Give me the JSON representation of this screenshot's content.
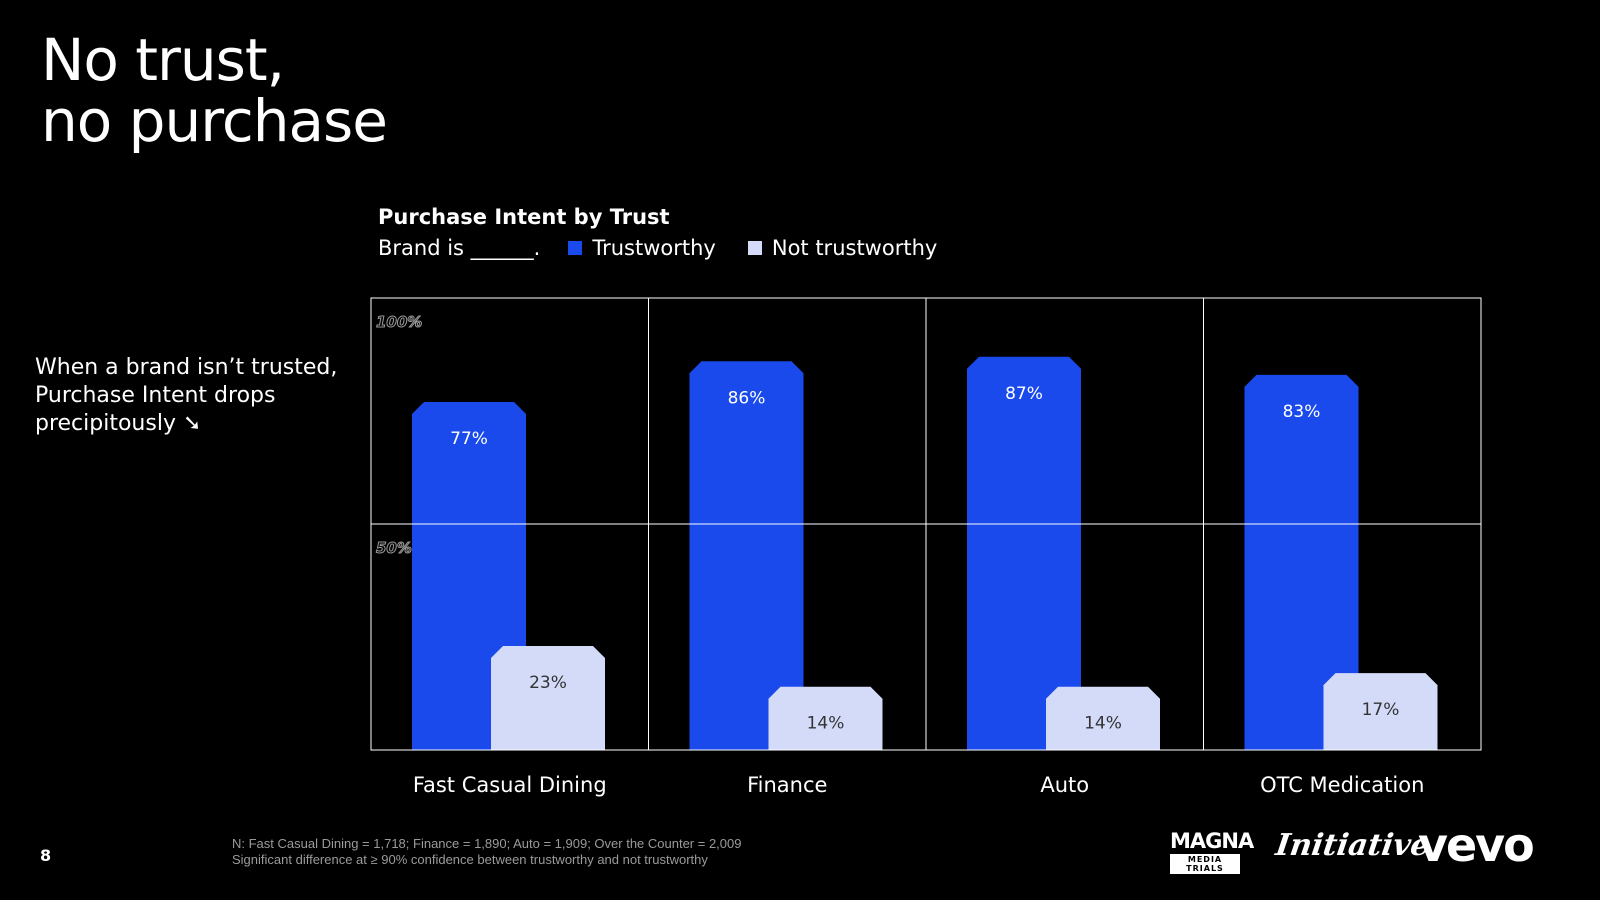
{
  "title": {
    "line1": "No trust,",
    "line2": "no purchase"
  },
  "side_note": {
    "line1": "When a brand isn’t trusted,",
    "line2": "Purchase Intent drops",
    "line3": "precipitously ➘"
  },
  "legend": {
    "prefix": "Brand is ______.",
    "trustworthy": "Trustworthy",
    "not_trustworthy": "Not trustworthy"
  },
  "colors": {
    "trustworthy": "#1a4aeb",
    "not_trustworthy": "#d3dbf9",
    "background": "#000000"
  },
  "chart_data": {
    "type": "bar",
    "title": "Purchase Intent by Trust",
    "categories": [
      "Fast Casual Dining",
      "Finance",
      "Auto",
      "OTC Medication"
    ],
    "series": [
      {
        "name": "Trustworthy",
        "values": [
          77,
          86,
          87,
          83
        ],
        "labels": [
          "77%",
          "86%",
          "87%",
          "83%"
        ]
      },
      {
        "name": "Not trustworthy",
        "values": [
          23,
          14,
          14,
          17
        ],
        "labels": [
          "23%",
          "14%",
          "14%",
          "17%"
        ]
      }
    ],
    "ylim": [
      0,
      100
    ],
    "yticks": [
      {
        "value": 100,
        "label": "100%"
      },
      {
        "value": 50,
        "label": "50%"
      }
    ],
    "grid": true,
    "legend_position": "top-left"
  },
  "footnote": {
    "line1": "N: Fast Casual Dining = 1,718; Finance = 1,890; Auto = 1,909; Over the Counter = 2,009",
    "line2": "Significant difference at ≥ 90% confidence between trustworthy and not trustworthy"
  },
  "page_number": "8",
  "logos": {
    "magna": "MAGNA",
    "magna_sub": "MEDIA TRIALS",
    "initiative": "Initiative",
    "vevo": "vevo"
  }
}
